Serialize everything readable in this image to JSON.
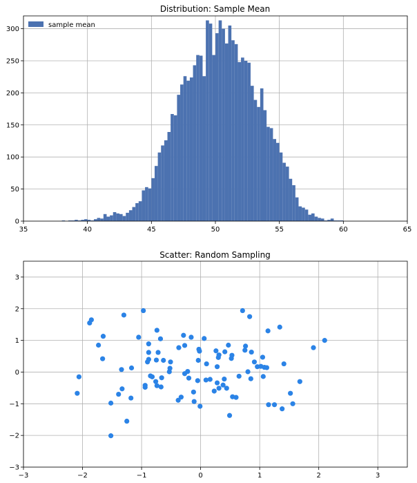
{
  "chart_data": [
    {
      "type": "bar",
      "title": "Distribution: Sample Mean",
      "xlabel": "",
      "ylabel": "",
      "xlim": [
        35,
        65
      ],
      "ylim": [
        0,
        320
      ],
      "xticks": [
        "35",
        "40",
        "45",
        "50",
        "55",
        "60",
        "65"
      ],
      "yticks": [
        "0",
        "50",
        "100",
        "150",
        "200",
        "250",
        "300"
      ],
      "grid": true,
      "legend": {
        "placement": "top-left",
        "entries": [
          "sample mean"
        ]
      },
      "bin_width": 0.25,
      "series": [
        {
          "name": "sample mean",
          "bins": [
            [
              38.0,
              1
            ],
            [
              38.5,
              1
            ],
            [
              38.75,
              1
            ],
            [
              39.0,
              2
            ],
            [
              39.25,
              1
            ],
            [
              39.5,
              2
            ],
            [
              39.75,
              3
            ],
            [
              40.0,
              2
            ],
            [
              40.25,
              1
            ],
            [
              40.5,
              3
            ],
            [
              40.75,
              5
            ],
            [
              41.0,
              4
            ],
            [
              41.25,
              11
            ],
            [
              41.5,
              7
            ],
            [
              41.75,
              9
            ],
            [
              42.0,
              14
            ],
            [
              42.25,
              12
            ],
            [
              42.5,
              11
            ],
            [
              42.75,
              8
            ],
            [
              43.0,
              13
            ],
            [
              43.25,
              17
            ],
            [
              43.5,
              22
            ],
            [
              43.75,
              28
            ],
            [
              44.0,
              31
            ],
            [
              44.25,
              48
            ],
            [
              44.5,
              53
            ],
            [
              44.75,
              51
            ],
            [
              45.0,
              67
            ],
            [
              45.25,
              86
            ],
            [
              45.5,
              107
            ],
            [
              45.75,
              118
            ],
            [
              46.0,
              126
            ],
            [
              46.25,
              139
            ],
            [
              46.5,
              167
            ],
            [
              46.75,
              165
            ],
            [
              47.0,
              197
            ],
            [
              47.25,
              213
            ],
            [
              47.5,
              226
            ],
            [
              47.75,
              219
            ],
            [
              48.0,
              224
            ],
            [
              48.25,
              243
            ],
            [
              48.5,
              259
            ],
            [
              48.75,
              258
            ],
            [
              49.0,
              226
            ],
            [
              49.25,
              313
            ],
            [
              49.5,
              308
            ],
            [
              49.75,
              259
            ],
            [
              50.0,
              293
            ],
            [
              50.25,
              313
            ],
            [
              50.5,
              300
            ],
            [
              50.75,
              277
            ],
            [
              51.0,
              305
            ],
            [
              51.25,
              282
            ],
            [
              51.5,
              276
            ],
            [
              51.75,
              248
            ],
            [
              52.0,
              255
            ],
            [
              52.25,
              250
            ],
            [
              52.5,
              247
            ],
            [
              52.75,
              211
            ],
            [
              53.0,
              189
            ],
            [
              53.25,
              178
            ],
            [
              53.5,
              207
            ],
            [
              53.75,
              173
            ],
            [
              54.0,
              147
            ],
            [
              54.25,
              145
            ],
            [
              54.5,
              128
            ],
            [
              54.75,
              122
            ],
            [
              55.0,
              107
            ],
            [
              55.25,
              91
            ],
            [
              55.5,
              85
            ],
            [
              55.75,
              66
            ],
            [
              56.0,
              56
            ],
            [
              56.25,
              37
            ],
            [
              56.5,
              23
            ],
            [
              56.75,
              21
            ],
            [
              57.0,
              18
            ],
            [
              57.25,
              10
            ],
            [
              57.5,
              12
            ],
            [
              57.75,
              7
            ],
            [
              58.0,
              5
            ],
            [
              58.25,
              4
            ],
            [
              58.5,
              1
            ],
            [
              58.75,
              2
            ],
            [
              59.0,
              4
            ],
            [
              59.25,
              1
            ],
            [
              59.5,
              1
            ],
            [
              59.75,
              1
            ]
          ]
        }
      ]
    },
    {
      "type": "scatter",
      "title": "Scatter: Random Sampling",
      "xlabel": "",
      "ylabel": "",
      "xlim": [
        -3,
        3.5
      ],
      "ylim": [
        -3,
        3.5
      ],
      "xticks": [
        "−3",
        "−2",
        "−1",
        "0",
        "1",
        "2",
        "3"
      ],
      "yticks": [
        "−3",
        "−2",
        "−1",
        "0",
        "1",
        "2",
        "3"
      ],
      "grid": true,
      "series": [
        {
          "points": [
            [
              -1.85,
              1.65
            ],
            [
              -1.88,
              1.55
            ],
            [
              -1.73,
              0.85
            ],
            [
              -1.65,
              1.13
            ],
            [
              -1.66,
              0.42
            ],
            [
              -2.06,
              -0.15
            ],
            [
              -2.09,
              -0.67
            ],
            [
              -1.52,
              -0.98
            ],
            [
              -1.52,
              -2.01
            ],
            [
              -1.39,
              -0.7
            ],
            [
              -1.34,
              0.08
            ],
            [
              -1.33,
              -0.53
            ],
            [
              -1.3,
              1.8
            ],
            [
              -1.25,
              -1.55
            ],
            [
              -1.18,
              -0.82
            ],
            [
              -1.17,
              0.13
            ],
            [
              -1.05,
              1.1
            ],
            [
              -0.97,
              1.94
            ],
            [
              -0.94,
              -0.42
            ],
            [
              -0.94,
              -0.48
            ],
            [
              -0.9,
              0.32
            ],
            [
              -0.88,
              0.4
            ],
            [
              -0.88,
              0.89
            ],
            [
              -0.88,
              0.62
            ],
            [
              -0.85,
              -0.12
            ],
            [
              -0.82,
              -0.15
            ],
            [
              -0.76,
              -0.3
            ],
            [
              -0.75,
              0.38
            ],
            [
              -0.74,
              -0.43
            ],
            [
              -0.74,
              1.32
            ],
            [
              -0.72,
              0.62
            ],
            [
              -0.68,
              1.05
            ],
            [
              -0.67,
              -0.47
            ],
            [
              -0.66,
              -0.18
            ],
            [
              -0.63,
              0.37
            ],
            [
              -0.53,
              0.01
            ],
            [
              -0.52,
              0.12
            ],
            [
              -0.51,
              0.32
            ],
            [
              -0.38,
              -0.89
            ],
            [
              -0.37,
              0.77
            ],
            [
              -0.33,
              -0.79
            ],
            [
              -0.29,
              1.16
            ],
            [
              -0.27,
              0.84
            ],
            [
              -0.27,
              -0.05
            ],
            [
              -0.22,
              0.02
            ],
            [
              -0.2,
              -0.19
            ],
            [
              -0.16,
              1.1
            ],
            [
              -0.12,
              -0.63
            ],
            [
              -0.11,
              -0.93
            ],
            [
              -0.05,
              -0.27
            ],
            [
              -0.04,
              0.37
            ],
            [
              -0.03,
              0.72
            ],
            [
              -0.02,
              0.66
            ],
            [
              -0.01,
              -1.08
            ],
            [
              0.06,
              1.06
            ],
            [
              0.09,
              -0.25
            ],
            [
              0.1,
              0.26
            ],
            [
              0.16,
              -0.23
            ],
            [
              0.23,
              -0.6
            ],
            [
              0.26,
              0.67
            ],
            [
              0.28,
              -0.34
            ],
            [
              0.28,
              0.17
            ],
            [
              0.3,
              0.46
            ],
            [
              0.31,
              0.54
            ],
            [
              0.31,
              -0.51
            ],
            [
              0.38,
              -0.41
            ],
            [
              0.4,
              -0.22
            ],
            [
              0.41,
              0.64
            ],
            [
              0.44,
              -0.51
            ],
            [
              0.47,
              0.85
            ],
            [
              0.49,
              -1.37
            ],
            [
              0.52,
              0.43
            ],
            [
              0.53,
              0.53
            ],
            [
              0.54,
              -0.78
            ],
            [
              0.6,
              -0.8
            ],
            [
              0.65,
              -0.13
            ],
            [
              0.71,
              1.94
            ],
            [
              0.75,
              0.69
            ],
            [
              0.76,
              0.82
            ],
            [
              0.8,
              0.01
            ],
            [
              0.83,
              1.75
            ],
            [
              0.85,
              -0.21
            ],
            [
              0.86,
              0.63
            ],
            [
              0.91,
              0.32
            ],
            [
              0.96,
              0.17
            ],
            [
              1.02,
              0.18
            ],
            [
              1.05,
              0.47
            ],
            [
              1.06,
              -0.14
            ],
            [
              1.08,
              0.15
            ],
            [
              1.12,
              0.14
            ],
            [
              1.14,
              1.3
            ],
            [
              1.15,
              -1.03
            ],
            [
              1.25,
              -1.03
            ],
            [
              1.34,
              1.42
            ],
            [
              1.38,
              -1.16
            ],
            [
              1.41,
              0.26
            ],
            [
              1.52,
              -0.67
            ],
            [
              1.56,
              -1.0
            ],
            [
              1.68,
              -0.3
            ],
            [
              1.91,
              0.77
            ],
            [
              2.1,
              1.0
            ]
          ]
        }
      ]
    }
  ],
  "colors": {
    "bar": "#4c72b0",
    "scatter": "#2b83e6",
    "grid": "#b0b0b0"
  }
}
